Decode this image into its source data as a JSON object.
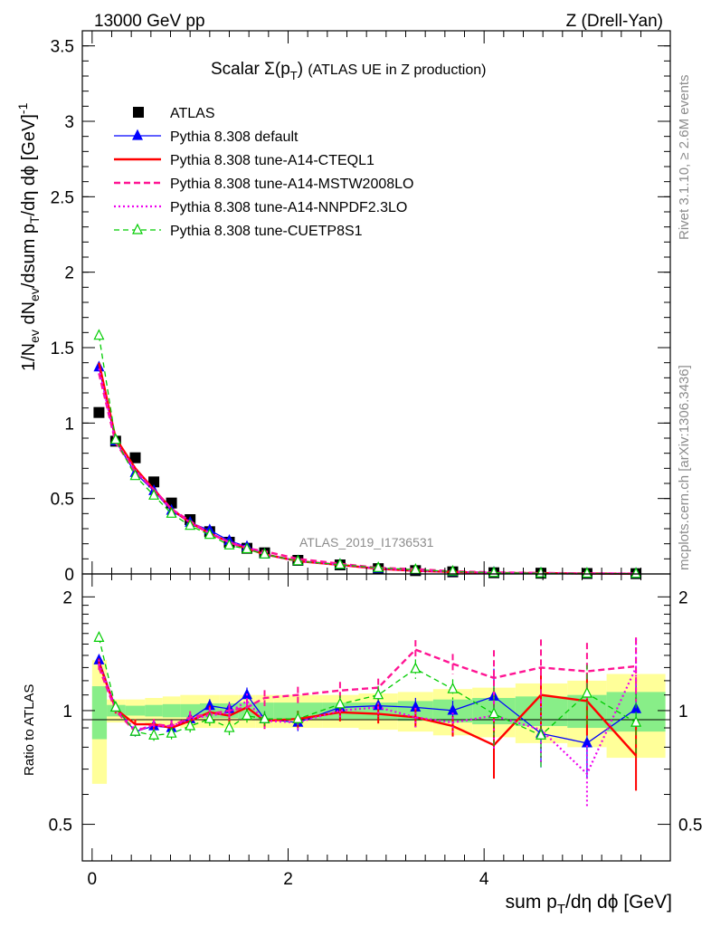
{
  "header": {
    "left": "13000 GeV pp",
    "right": "Z (Drell-Yan)"
  },
  "side": {
    "rivet": "Rivet 3.1.10, ≥ 2.6M events",
    "mcplots": "mcplots.cern.ch [arXiv:1306.3436]"
  },
  "chart_data": [
    {
      "type": "line",
      "title": "Scalar Σ(pT) (ATLAS UE in Z production)",
      "ylabel": "1/Nev dNev/dsum pT/dη dφ [GeV]-1",
      "xlabel": "",
      "watermark": "ATLAS_2019_I1736531",
      "xlim": [
        -0.1,
        5.9
      ],
      "ylim": [
        0,
        3.6
      ],
      "yticks": [
        "0",
        "0.5",
        "1",
        "1.5",
        "2",
        "2.5",
        "3",
        "3.5"
      ],
      "grid": false,
      "legend_position": "top-left",
      "x": [
        0.07,
        0.24,
        0.44,
        0.63,
        0.81,
        1.0,
        1.2,
        1.4,
        1.58,
        1.76,
        2.1,
        2.53,
        2.92,
        3.3,
        3.68,
        4.1,
        4.58,
        5.05,
        5.55
      ],
      "series": [
        {
          "name": "ATLAS",
          "color": "#000000",
          "values": [
            1.07,
            0.88,
            0.77,
            0.61,
            0.47,
            0.36,
            0.28,
            0.21,
            0.17,
            0.14,
            0.09,
            0.06,
            0.035,
            0.022,
            0.014,
            0.008,
            0.005,
            0.003,
            0.002
          ]
        },
        {
          "name": "Pythia 8.308 default",
          "color": "#0000ff",
          "values": [
            1.37,
            0.88,
            0.67,
            0.55,
            0.42,
            0.34,
            0.29,
            0.22,
            0.18,
            0.13,
            0.085,
            0.062,
            0.036,
            0.023,
            0.014,
            0.009,
            0.004,
            0.0025,
            0.002
          ]
        },
        {
          "name": "Pythia 8.308 tune-A14-CTEQL1",
          "color": "#ff0000",
          "values": [
            1.4,
            0.9,
            0.7,
            0.56,
            0.43,
            0.34,
            0.27,
            0.21,
            0.17,
            0.13,
            0.085,
            0.06,
            0.034,
            0.021,
            0.013,
            0.0065,
            0.0055,
            0.003,
            0.0015
          ]
        },
        {
          "name": "Pythia 8.308 tune-A14-MSTW2008LO",
          "color": "#ff1493",
          "values": [
            1.33,
            0.87,
            0.68,
            0.56,
            0.43,
            0.35,
            0.27,
            0.21,
            0.17,
            0.15,
            0.1,
            0.068,
            0.04,
            0.032,
            0.018,
            0.01,
            0.0065,
            0.0038,
            0.0026
          ]
        },
        {
          "name": "Pythia 8.308 tune-A14-NNPDF2.3LO",
          "color": "#ee00ee",
          "values": [
            1.36,
            0.88,
            0.69,
            0.55,
            0.43,
            0.34,
            0.27,
            0.21,
            0.18,
            0.13,
            0.085,
            0.06,
            0.036,
            0.021,
            0.013,
            0.0078,
            0.0043,
            0.0021,
            0.0025
          ]
        },
        {
          "name": "Pythia 8.308 tune-CUETP8S1",
          "color": "#00cc00",
          "values": [
            1.58,
            0.89,
            0.65,
            0.52,
            0.4,
            0.32,
            0.26,
            0.19,
            0.165,
            0.13,
            0.085,
            0.062,
            0.04,
            0.028,
            0.016,
            0.0078,
            0.0045,
            0.0033,
            0.0019
          ]
        }
      ]
    },
    {
      "type": "line",
      "xlabel": "sum pT/dη dφ [GeV]",
      "ylabel": "Ratio to ATLAS",
      "xlim": [
        -0.1,
        5.9
      ],
      "ylim": [
        0.4,
        2.3
      ],
      "yticks": [
        "0.5",
        "1",
        "2"
      ],
      "xticks": [
        "0",
        "2",
        "4"
      ],
      "grid": false,
      "x": [
        0.07,
        0.24,
        0.44,
        0.63,
        0.81,
        1.0,
        1.2,
        1.4,
        1.58,
        1.76,
        2.1,
        2.53,
        2.92,
        3.3,
        3.68,
        4.1,
        4.58,
        5.05,
        5.55
      ],
      "bands": {
        "edges": [
          0,
          0.15,
          0.34,
          0.54,
          0.72,
          0.9,
          1.1,
          1.3,
          1.49,
          1.67,
          1.85,
          2.35,
          2.72,
          3.12,
          3.48,
          3.88,
          4.32,
          4.85,
          5.25,
          5.85
        ],
        "green": [
          0.16,
          0.035,
          0.03,
          0.035,
          0.04,
          0.04,
          0.045,
          0.045,
          0.05,
          0.05,
          0.05,
          0.05,
          0.05,
          0.06,
          0.07,
          0.08,
          0.09,
          0.1,
          0.12
        ],
        "yellow": [
          0.36,
          0.07,
          0.07,
          0.08,
          0.09,
          0.1,
          0.1,
          0.1,
          0.1,
          0.1,
          0.1,
          0.1,
          0.11,
          0.12,
          0.14,
          0.15,
          0.18,
          0.2,
          0.25
        ]
      },
      "series": [
        {
          "name": "Pythia 8.308 default",
          "color": "#0000ff",
          "values": [
            1.36,
            1.02,
            0.88,
            0.91,
            0.9,
            0.95,
            1.03,
            1.01,
            1.1,
            0.95,
            0.93,
            1.02,
            1.03,
            1.02,
            1.0,
            1.09,
            0.87,
            0.82,
            1.01
          ]
        },
        {
          "name": "Pythia 8.308 tune-A14-CTEQL1",
          "color": "#ff0000",
          "values": [
            1.34,
            1.01,
            0.92,
            0.92,
            0.9,
            0.94,
            0.99,
            0.97,
            1.02,
            0.94,
            0.95,
            0.99,
            0.98,
            0.96,
            0.91,
            0.81,
            1.1,
            1.06,
            0.76
          ]
        },
        {
          "name": "Pythia 8.308 tune-A14-MSTW2008LO",
          "color": "#ff1493",
          "values": [
            1.3,
            1.0,
            0.88,
            0.92,
            0.91,
            0.96,
            0.98,
            1.0,
            1.02,
            1.08,
            1.1,
            1.13,
            1.15,
            1.45,
            1.33,
            1.22,
            1.3,
            1.27,
            1.31
          ]
        },
        {
          "name": "Pythia 8.308 tune-A14-NNPDF2.3LO",
          "color": "#ee00ee",
          "values": [
            1.33,
            1.01,
            0.89,
            0.91,
            0.91,
            0.95,
            0.97,
            0.99,
            1.06,
            0.94,
            0.93,
            1.0,
            1.02,
            0.96,
            0.93,
            0.97,
            0.89,
            0.68,
            1.3
          ]
        },
        {
          "name": "Pythia 8.308 tune-CUETP8S1",
          "color": "#00cc00",
          "values": [
            1.56,
            1.02,
            0.88,
            0.86,
            0.87,
            0.91,
            0.95,
            0.9,
            0.97,
            0.95,
            0.95,
            1.04,
            1.1,
            1.29,
            1.14,
            0.98,
            0.86,
            1.11,
            0.93
          ]
        }
      ]
    }
  ]
}
